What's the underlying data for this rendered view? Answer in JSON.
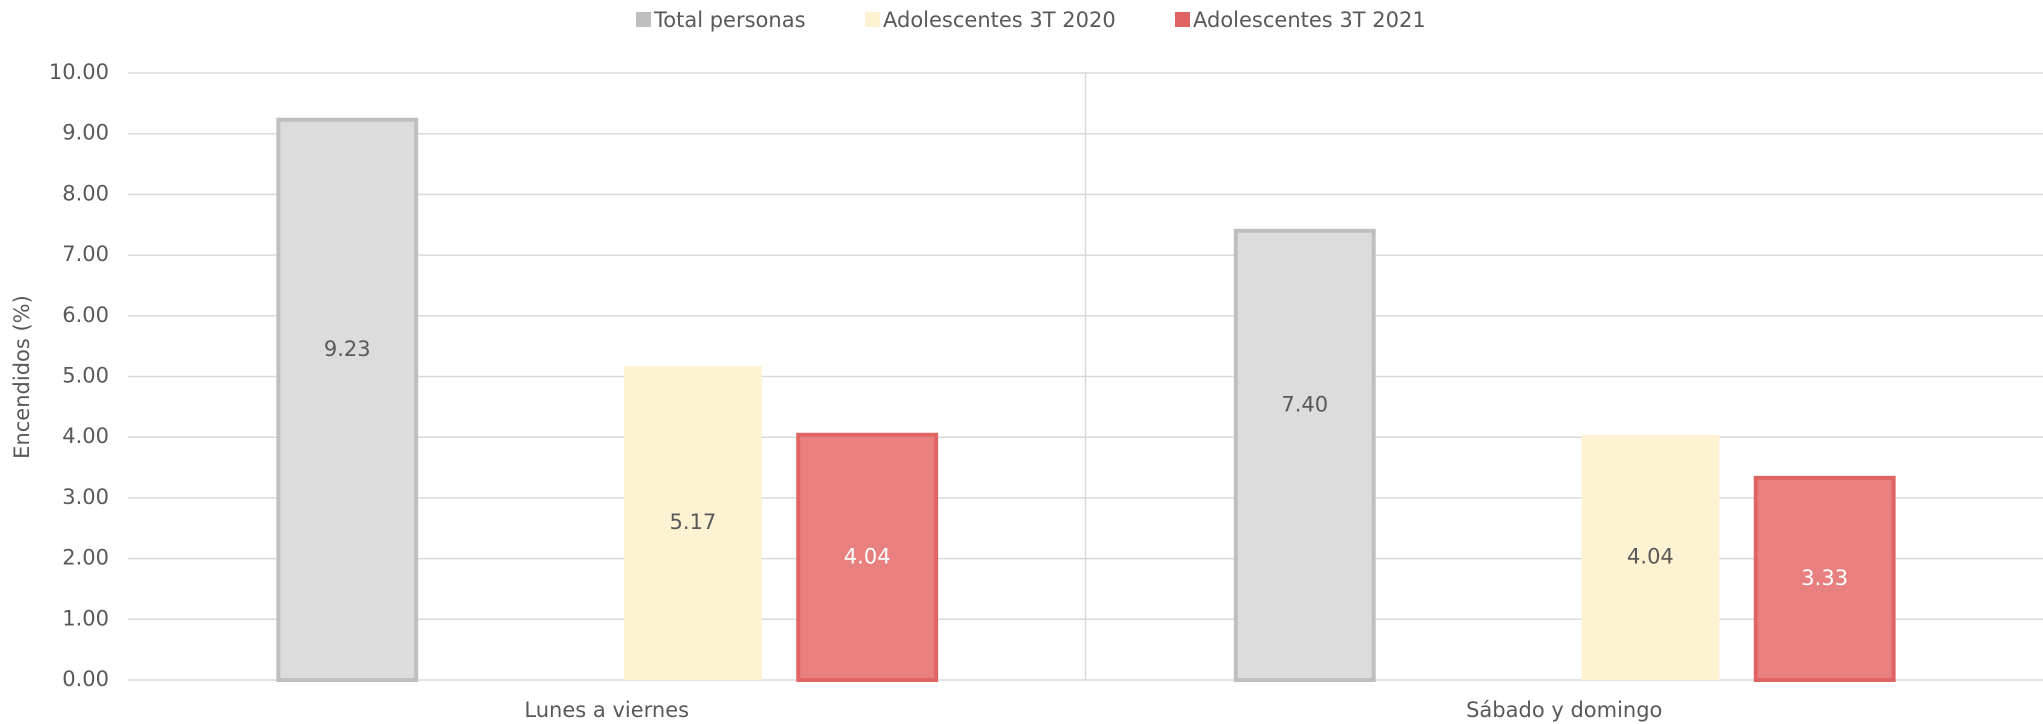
{
  "chart_data": {
    "type": "bar",
    "y_label": "Encendidos (%)",
    "categories": [
      "Lunes a viernes",
      "Sábado y domingo"
    ],
    "series": [
      {
        "name": "Total personas",
        "color": "#dcdcdc",
        "stroke": "#bfbfbf",
        "values": [
          9.23,
          7.4
        ],
        "value_labels": [
          "9.23",
          "7.40"
        ]
      },
      {
        "name": "Adolescentes 3T 2020",
        "color": "#fdf2d2",
        "values": [
          5.17,
          4.04
        ],
        "value_labels": [
          "5.17",
          "4.04"
        ]
      },
      {
        "name": "Adolescentes 3T 2021",
        "color": "#e88080",
        "stroke": "#e06464",
        "values": [
          4.04,
          3.33
        ],
        "value_labels": [
          "4.04",
          "3.33"
        ]
      }
    ],
    "ylim": [
      0,
      10
    ],
    "yticks": [
      {
        "value": 0,
        "label": "0.00"
      },
      {
        "value": 1,
        "label": "1.00"
      },
      {
        "value": 2,
        "label": "2.00"
      },
      {
        "value": 3,
        "label": "3.00"
      },
      {
        "value": 4,
        "label": "4.00"
      },
      {
        "value": 5,
        "label": "5.00"
      },
      {
        "value": 6,
        "label": "6.00"
      },
      {
        "value": 7,
        "label": "7.00"
      },
      {
        "value": 8,
        "label": "8.00"
      },
      {
        "value": 9,
        "label": "9.00"
      },
      {
        "value": 10,
        "label": "10.00"
      }
    ],
    "grid": true,
    "legend": "top"
  }
}
